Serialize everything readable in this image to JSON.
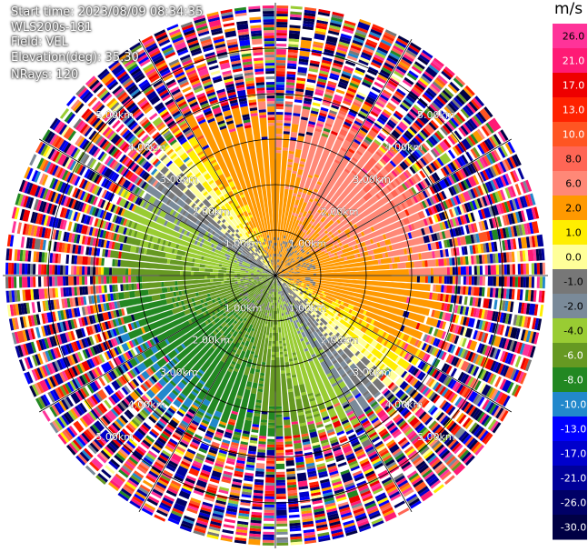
{
  "header": {
    "start_time": "Start time: 2023/08/09 08:34:35",
    "instrument": "WLS200s-181",
    "field": "Field: VEL",
    "elevation": "Elevation(deg): 35.30",
    "nrays": "NRays: 120"
  },
  "chart_data": {
    "type": "heatmap",
    "projection": "ppi",
    "field": "VEL",
    "units": "m/s",
    "n_rays": 120,
    "elevation_deg": 35.3,
    "range_rings_km": [
      1.0,
      2.0,
      3.0,
      4.0,
      5.0
    ],
    "range_ring_labels": [
      "1.00km",
      "2.00km",
      "3.00km",
      "4.00km",
      "5.00km"
    ],
    "max_range_km": 5.9,
    "valid_data_range_km": 3.6,
    "wind_direction_from_deg": 225,
    "colorbar": {
      "unit_label": "m/s",
      "ticks": [
        "26.0",
        "21.0",
        "17.0",
        "13.0",
        "10.0",
        "8.0",
        "6.0",
        "2.0",
        "1.0",
        "0.0",
        "-1.0",
        "-2.0",
        "-4.0",
        "-6.0",
        "-8.0",
        "-10.0",
        "-13.0",
        "-17.0",
        "-21.0",
        "-26.0",
        "-30.0"
      ],
      "bins": [
        {
          "min": 26,
          "max": 30,
          "color": "#ff3399"
        },
        {
          "min": 21,
          "max": 26,
          "color": "#ff1a75"
        },
        {
          "min": 17,
          "max": 21,
          "color": "#ee0000"
        },
        {
          "min": 13,
          "max": 17,
          "color": "#ff2200"
        },
        {
          "min": 10,
          "max": 13,
          "color": "#ff5522"
        },
        {
          "min": 8,
          "max": 10,
          "color": "#ff6655"
        },
        {
          "min": 6,
          "max": 8,
          "color": "#ff8877"
        },
        {
          "min": 2,
          "max": 6,
          "color": "#ff9900"
        },
        {
          "min": 1,
          "max": 2,
          "color": "#ffee00"
        },
        {
          "min": 0,
          "max": 1,
          "color": "#ffff99"
        },
        {
          "min": -1,
          "max": 0,
          "color": "#777777"
        },
        {
          "min": -2,
          "max": -1,
          "color": "#7a8a99"
        },
        {
          "min": -4,
          "max": -2,
          "color": "#99cc33"
        },
        {
          "min": -6,
          "max": -4,
          "color": "#669922"
        },
        {
          "min": -8,
          "max": -6,
          "color": "#228822"
        },
        {
          "min": -10,
          "max": -8,
          "color": "#2288cc"
        },
        {
          "min": -13,
          "max": -10,
          "color": "#0000ff"
        },
        {
          "min": -17,
          "max": -13,
          "color": "#0000cc"
        },
        {
          "min": -21,
          "max": -17,
          "color": "#000099"
        },
        {
          "min": -26,
          "max": -21,
          "color": "#000066"
        },
        {
          "min": -30,
          "max": -26,
          "color": "#000044"
        }
      ]
    }
  }
}
